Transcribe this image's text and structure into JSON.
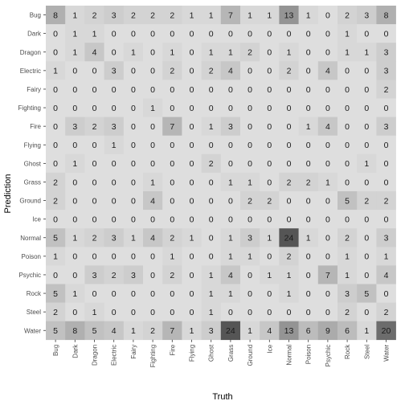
{
  "chart_data": {
    "type": "heatmap",
    "title": "",
    "xlabel": "Truth",
    "ylabel": "Prediction",
    "x": [
      "Bug",
      "Dark",
      "Dragon",
      "Electric",
      "Fairy",
      "Fighting",
      "Fire",
      "Flying",
      "Ghost",
      "Grass",
      "Ground",
      "Ice",
      "Normal",
      "Poison",
      "Psychic",
      "Rock",
      "Steel",
      "Water"
    ],
    "y": [
      "Bug",
      "Dark",
      "Dragon",
      "Electric",
      "Fairy",
      "Fighting",
      "Fire",
      "Flying",
      "Ghost",
      "Grass",
      "Ground",
      "Ice",
      "Normal",
      "Poison",
      "Psychic",
      "Rock",
      "Steel",
      "Water"
    ],
    "values": [
      [
        8,
        1,
        2,
        3,
        2,
        2,
        2,
        1,
        1,
        7,
        1,
        1,
        13,
        1,
        0,
        2,
        3,
        8
      ],
      [
        0,
        1,
        1,
        0,
        0,
        0,
        0,
        0,
        0,
        0,
        0,
        0,
        0,
        0,
        0,
        1,
        0,
        0
      ],
      [
        0,
        1,
        4,
        0,
        1,
        0,
        1,
        0,
        1,
        1,
        2,
        0,
        1,
        0,
        0,
        1,
        1,
        3
      ],
      [
        1,
        0,
        0,
        3,
        0,
        0,
        2,
        0,
        2,
        4,
        0,
        0,
        2,
        0,
        4,
        0,
        0,
        3
      ],
      [
        0,
        0,
        0,
        0,
        0,
        0,
        0,
        0,
        0,
        0,
        0,
        0,
        0,
        0,
        0,
        0,
        0,
        2
      ],
      [
        0,
        0,
        0,
        0,
        0,
        1,
        0,
        0,
        0,
        0,
        0,
        0,
        0,
        0,
        0,
        0,
        0,
        0
      ],
      [
        0,
        3,
        2,
        3,
        0,
        0,
        7,
        0,
        1,
        3,
        0,
        0,
        0,
        1,
        4,
        0,
        0,
        3
      ],
      [
        0,
        0,
        0,
        1,
        0,
        0,
        0,
        0,
        0,
        0,
        0,
        0,
        0,
        0,
        0,
        0,
        0,
        0
      ],
      [
        0,
        1,
        0,
        0,
        0,
        0,
        0,
        0,
        2,
        0,
        0,
        0,
        0,
        0,
        0,
        0,
        1,
        0
      ],
      [
        2,
        0,
        0,
        0,
        0,
        1,
        0,
        0,
        0,
        1,
        1,
        0,
        2,
        2,
        1,
        0,
        0,
        0
      ],
      [
        2,
        0,
        0,
        0,
        0,
        4,
        0,
        0,
        0,
        0,
        2,
        2,
        0,
        0,
        0,
        5,
        2,
        2
      ],
      [
        0,
        0,
        0,
        0,
        0,
        0,
        0,
        0,
        0,
        0,
        0,
        0,
        0,
        0,
        0,
        0,
        0,
        0
      ],
      [
        5,
        1,
        2,
        3,
        1,
        4,
        2,
        1,
        0,
        1,
        3,
        1,
        24,
        1,
        0,
        2,
        0,
        3
      ],
      [
        1,
        0,
        0,
        0,
        0,
        0,
        1,
        0,
        0,
        1,
        1,
        0,
        2,
        0,
        0,
        1,
        0,
        1
      ],
      [
        0,
        0,
        3,
        2,
        3,
        0,
        2,
        0,
        1,
        4,
        0,
        1,
        1,
        0,
        7,
        1,
        0,
        4
      ],
      [
        5,
        1,
        0,
        0,
        0,
        0,
        0,
        0,
        1,
        1,
        0,
        0,
        1,
        0,
        0,
        3,
        5,
        0
      ],
      [
        2,
        0,
        1,
        0,
        0,
        0,
        0,
        0,
        1,
        0,
        0,
        0,
        0,
        0,
        0,
        2,
        0,
        2
      ],
      [
        5,
        8,
        5,
        4,
        1,
        2,
        7,
        1,
        3,
        24,
        1,
        4,
        13,
        6,
        9,
        6,
        1,
        20
      ]
    ],
    "value_range": [
      0,
      24
    ],
    "colors": {
      "low": "#dedede",
      "high": "#555555",
      "panel": "#ebebeb",
      "text": "#1a1a1a"
    },
    "grid": false,
    "legend": "none"
  }
}
